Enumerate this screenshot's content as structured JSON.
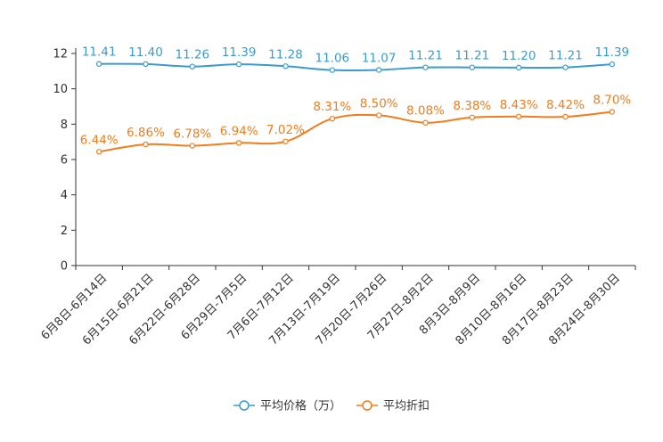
{
  "chart_data": {
    "type": "line",
    "title": "",
    "xlabel": "",
    "ylabel": "",
    "ylim": [
      0,
      12
    ],
    "yticks": [
      0,
      2,
      4,
      6,
      8,
      10,
      12
    ],
    "grid": false,
    "legend_position": "bottom",
    "categories": [
      "6月8日-6月14日",
      "6月15日-6月21日",
      "6月22日-6月28日",
      "6月29日-7月5日",
      "7月6日-7月12日",
      "7月13日-7月19日",
      "7月20日-7月26日",
      "7月27日-8月2日",
      "8月3日-8月9日",
      "8月10日-8月16日",
      "8月17日-8月23日",
      "8月24日-8月30日"
    ],
    "series": [
      {
        "name": "平均价格（万）",
        "color": "#3b9bd0",
        "values": [
          11.41,
          11.4,
          11.26,
          11.39,
          11.28,
          11.06,
          11.07,
          11.21,
          11.21,
          11.2,
          11.21,
          11.39
        ],
        "labels": [
          "11.41",
          "11.40",
          "11.26",
          "11.39",
          "11.28",
          "11.06",
          "11.07",
          "11.21",
          "11.21",
          "11.20",
          "11.21",
          "11.39"
        ]
      },
      {
        "name": "平均折扣",
        "color": "#f07d1e",
        "values": [
          6.44,
          6.86,
          6.78,
          6.94,
          7.02,
          8.31,
          8.5,
          8.08,
          8.38,
          8.43,
          8.42,
          8.7
        ],
        "labels": [
          "6.44%",
          "6.86%",
          "6.78%",
          "6.94%",
          "7.02%",
          "8.31%",
          "8.50%",
          "8.08%",
          "8.38%",
          "8.43%",
          "8.42%",
          "8.70%"
        ]
      }
    ]
  }
}
